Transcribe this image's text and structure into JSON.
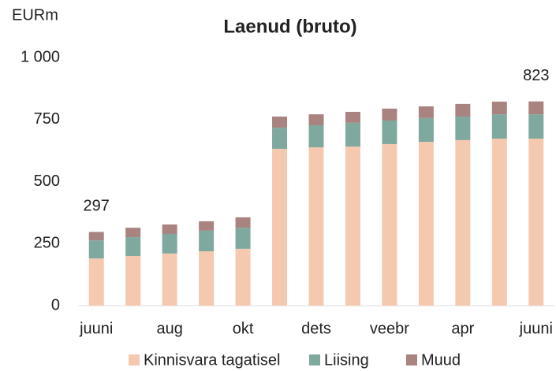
{
  "chart_data": {
    "type": "stacked_bar",
    "title": "Laenud (bruto)",
    "y_label": "EURm",
    "categories": [
      "juuni",
      null,
      "aug",
      null,
      "okt",
      null,
      "dets",
      null,
      "veebr",
      null,
      "apr",
      null,
      "juuni"
    ],
    "series": [
      {
        "name": "Kinnisvara tagatisel",
        "color": "#f5c9b0",
        "values": [
          190,
          200,
          210,
          219,
          229,
          632,
          638,
          641,
          651,
          660,
          667,
          673,
          673
        ]
      },
      {
        "name": "Liising",
        "color": "#7fa89e",
        "values": [
          73,
          76,
          79,
          83,
          85,
          85,
          89,
          96,
          95,
          96,
          95,
          98,
          98
        ]
      },
      {
        "name": "Muud",
        "color": "#a88380",
        "values": [
          34,
          38,
          38,
          38,
          42,
          45,
          44,
          44,
          48,
          47,
          51,
          51,
          52
        ]
      }
    ],
    "total_labels": [
      "297",
      null,
      null,
      null,
      null,
      null,
      null,
      null,
      null,
      null,
      null,
      null,
      "823"
    ],
    "ylim": [
      0,
      1000
    ],
    "yticks": [
      0,
      250,
      500,
      750,
      {
        "value": 1000,
        "label": "1 000"
      }
    ],
    "grid": false
  }
}
